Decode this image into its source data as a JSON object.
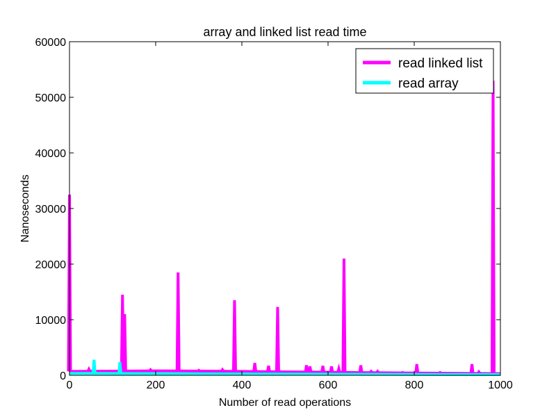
{
  "colors": {
    "linked_list": "#ff00ff",
    "array": "#00ffff"
  },
  "chart_data": {
    "type": "line",
    "title": "array and linked list read time",
    "xlabel": "Number of read operations",
    "ylabel": "Nanoseconds",
    "xlim": [
      0,
      1000
    ],
    "ylim": [
      0,
      60000
    ],
    "xticks": [
      0,
      200,
      400,
      600,
      800,
      1000
    ],
    "yticks": [
      0,
      10000,
      20000,
      30000,
      40000,
      50000,
      60000
    ],
    "grid": false,
    "legend_position": "top-right",
    "series": [
      {
        "name": "read linked list",
        "baseline": [
          [
            0,
            700
          ],
          [
            200,
            800
          ],
          [
            400,
            700
          ],
          [
            600,
            550
          ],
          [
            800,
            400
          ],
          [
            1000,
            300
          ]
        ],
        "spikes": [
          [
            0,
            32500
          ],
          [
            45,
            1100
          ],
          [
            123,
            14500
          ],
          [
            128,
            11000
          ],
          [
            188,
            1000
          ],
          [
            252,
            18500
          ],
          [
            300,
            900
          ],
          [
            355,
            1000
          ],
          [
            383,
            13500
          ],
          [
            430,
            2200
          ],
          [
            462,
            1700
          ],
          [
            483,
            12300
          ],
          [
            550,
            1800
          ],
          [
            558,
            1600
          ],
          [
            588,
            1700
          ],
          [
            608,
            1600
          ],
          [
            625,
            1200
          ],
          [
            637,
            21000
          ],
          [
            676,
            1800
          ],
          [
            700,
            700
          ],
          [
            715,
            700
          ],
          [
            773,
            500
          ],
          [
            806,
            2000
          ],
          [
            860,
            500
          ],
          [
            934,
            2000
          ],
          [
            950,
            600
          ],
          [
            983,
            53000
          ]
        ]
      },
      {
        "name": "read array",
        "baseline": [
          [
            0,
            350
          ],
          [
            200,
            300
          ],
          [
            400,
            250
          ],
          [
            600,
            200
          ],
          [
            800,
            150
          ],
          [
            1000,
            120
          ]
        ],
        "spikes": [
          [
            57,
            2800
          ],
          [
            117,
            2400
          ]
        ]
      }
    ]
  }
}
